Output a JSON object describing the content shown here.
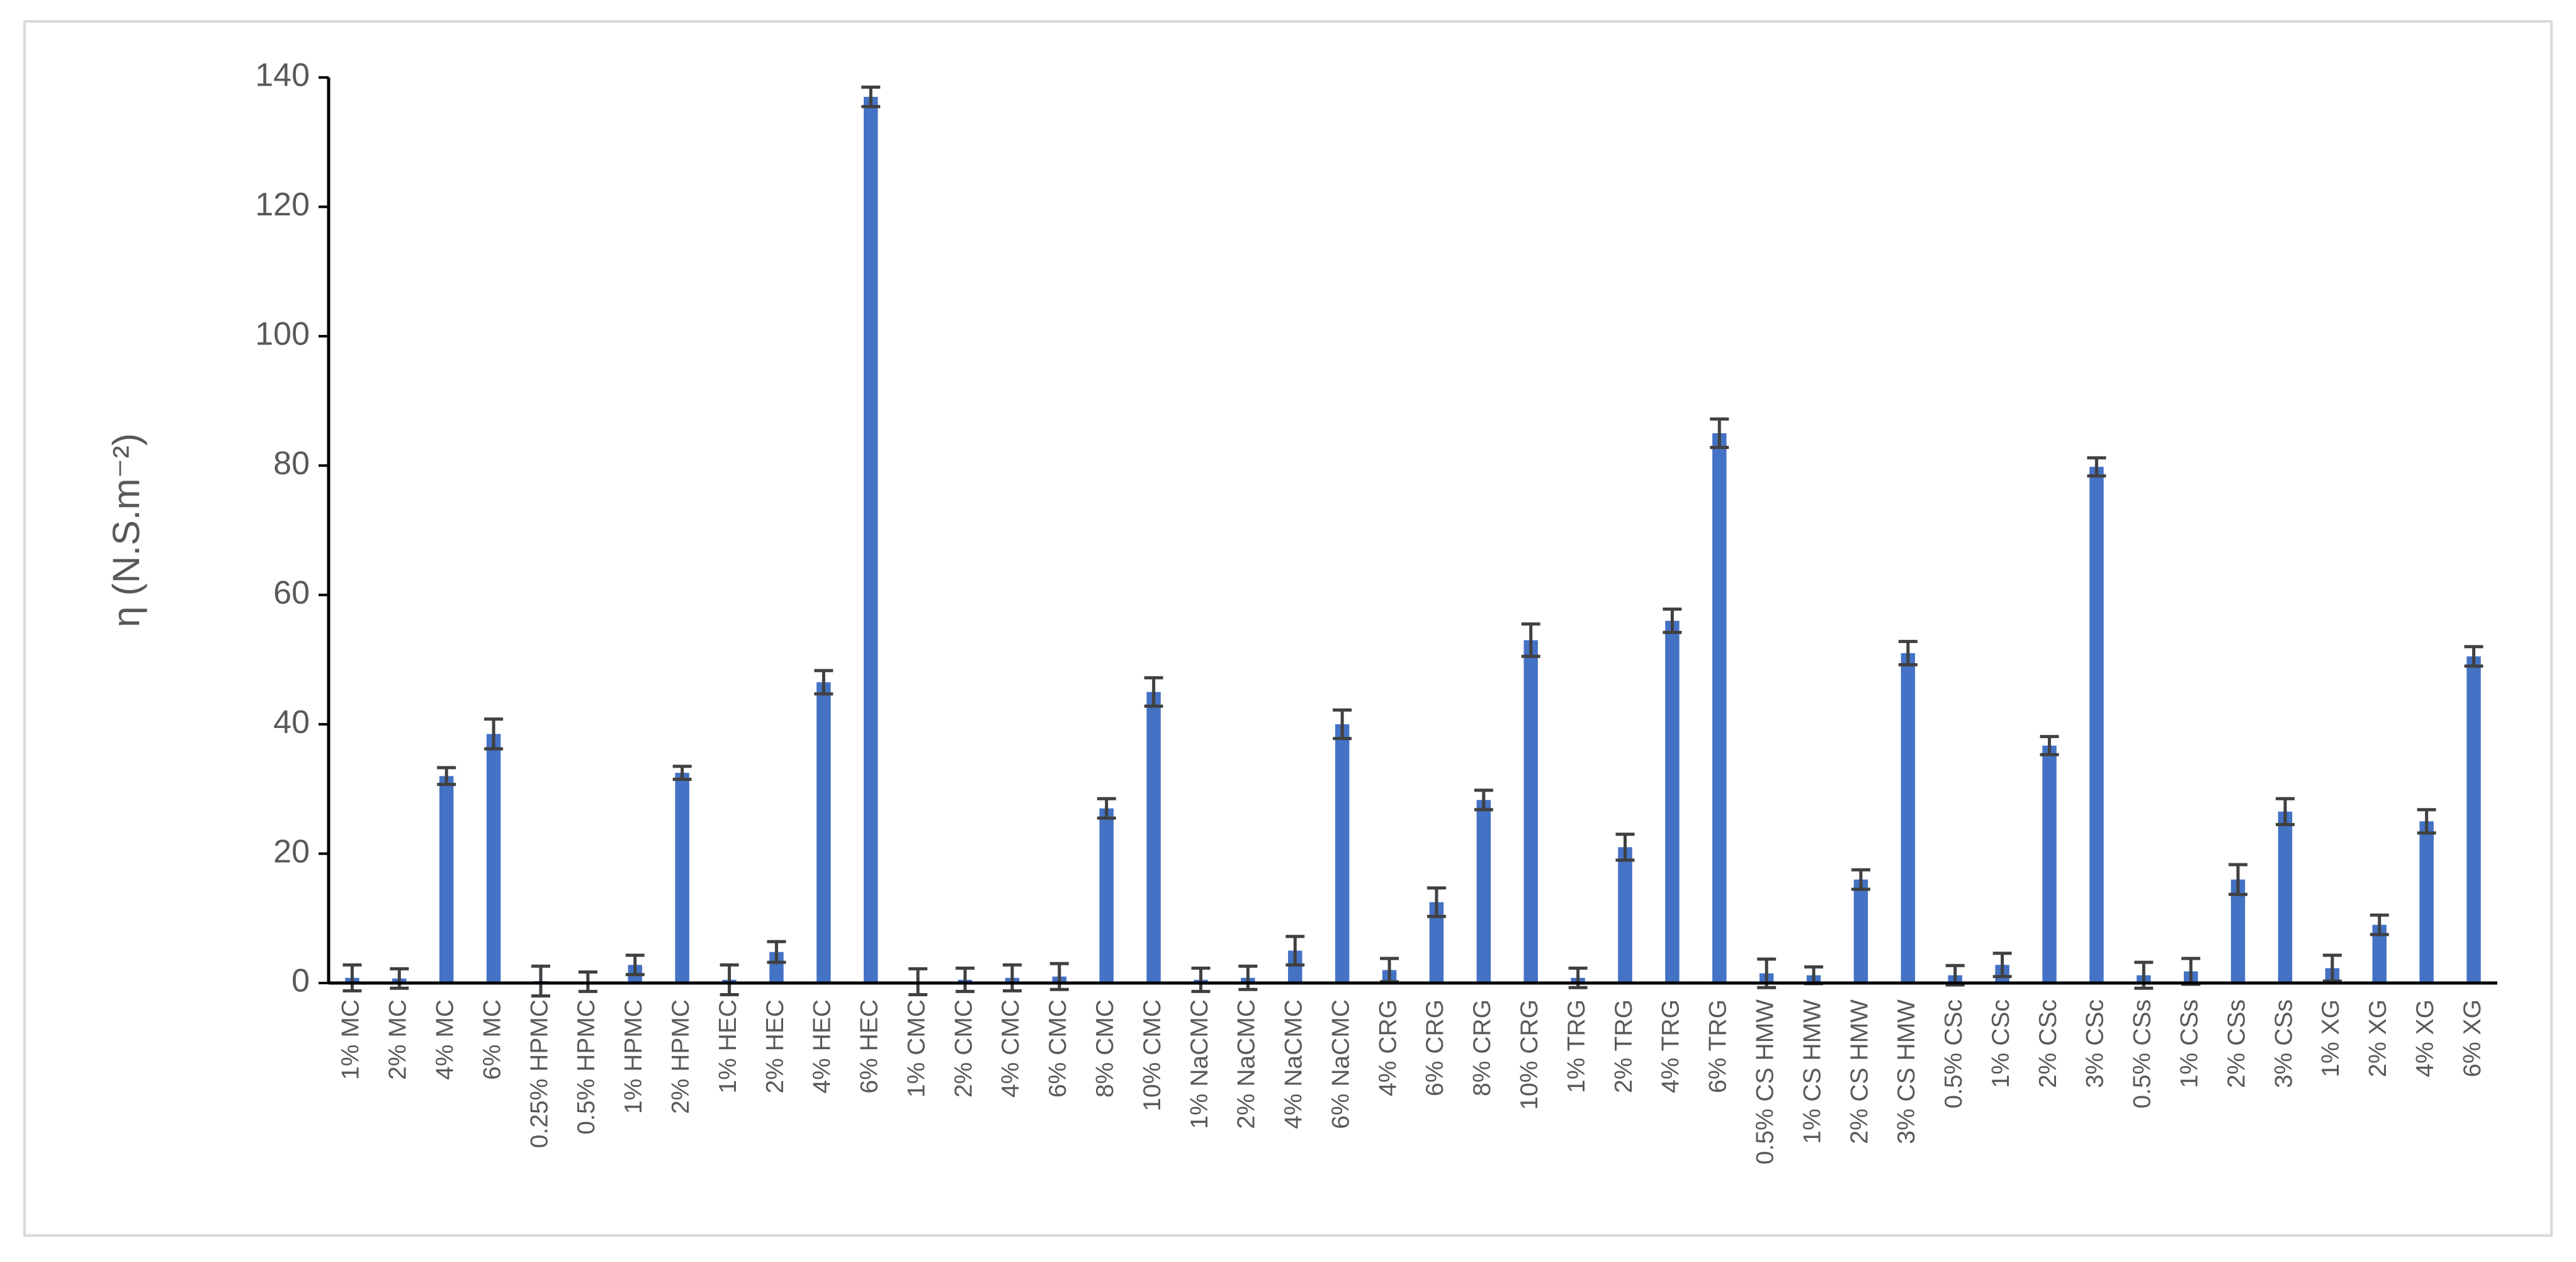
{
  "chart_data": {
    "type": "bar",
    "ylabel": "η (N.S.m⁻²)",
    "categories": [
      "1% MC",
      "2% MC",
      "4% MC",
      "6% MC",
      "0.25% HPMC",
      "0.5% HPMC",
      "1% HPMC",
      "2% HPMC",
      "1% HEC",
      "2% HEC",
      "4% HEC",
      "6% HEC",
      "1% CMC",
      "2% CMC",
      "4% CMC",
      "6% CMC",
      "8% CMC",
      "10% CMC",
      "1% NaCMC",
      "2% NaCMC",
      "4% NaCMC",
      "6% NaCMC",
      "4% CRG",
      "6% CRG",
      "8% CRG",
      "10% CRG",
      "1% TRG",
      "2% TRG",
      "4% TRG",
      "6% TRG",
      "0.5% CS HMW",
      "1% CS HMW",
      "2% CS HMW",
      "3% CS HMW",
      "0.5% CSc",
      "1% CSc",
      "2% CSc",
      "3% CSc",
      "0.5% CSs",
      "1% CSs",
      "2% CSs",
      "3% CSs",
      "1% XG",
      "2% XG",
      "4% XG",
      "6% XG"
    ],
    "values": [
      0.8,
      0.7,
      32,
      38.5,
      0.3,
      0.2,
      2.8,
      32.5,
      0.5,
      4.8,
      46.5,
      137,
      0.2,
      0.5,
      0.8,
      1,
      27,
      45,
      0.5,
      0.8,
      5,
      40,
      2,
      12.5,
      28.3,
      53,
      0.8,
      21,
      56,
      85,
      1.5,
      1.2,
      16,
      51,
      1.2,
      2.8,
      36.7,
      79.8,
      1.2,
      1.8,
      16,
      26.5,
      2.3,
      9,
      25,
      50.5
    ],
    "errors": [
      2,
      1.5,
      1.3,
      2.3,
      2.3,
      1.5,
      1.5,
      1,
      2.3,
      1.6,
      1.8,
      1.5,
      2,
      1.8,
      2,
      2,
      1.5,
      2.2,
      1.8,
      1.8,
      2.2,
      2.2,
      1.8,
      2.2,
      1.5,
      2.5,
      1.5,
      2,
      1.8,
      2.2,
      2.2,
      1.3,
      1.5,
      1.8,
      1.5,
      1.8,
      1.4,
      1.4,
      2,
      2,
      2.3,
      2,
      2,
      1.5,
      1.8,
      1.5
    ],
    "color": "#4472c4",
    "error_color": "#404040",
    "ylim": [
      0,
      140
    ],
    "yticks": [
      0,
      20,
      40,
      60,
      80,
      100,
      120,
      140
    ],
    "grid": false
  }
}
